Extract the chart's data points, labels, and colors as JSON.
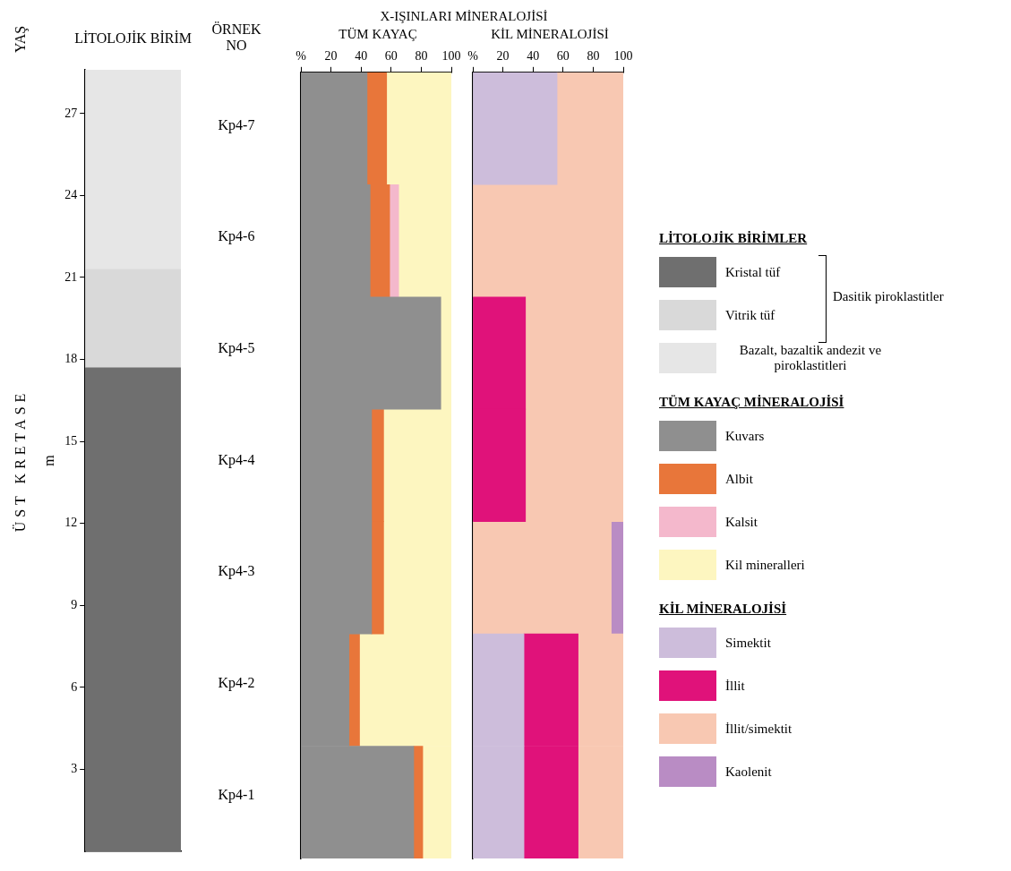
{
  "chart_data": [
    {
      "type": "bar",
      "title": "LİTOLOJİK BİRİM",
      "ylabel": "m",
      "categories": [
        null
      ],
      "stacked": true,
      "ylim": [
        0,
        28.6
      ],
      "yticks": [
        3,
        6,
        9,
        12,
        15,
        18,
        21,
        24,
        27
      ],
      "tick_labels": "y",
      "grid": false,
      "legend": "right",
      "legend_title": "LİTOLOJİK BİRİMLER",
      "series": [
        {
          "name": "Kristal tüf",
          "color": "#6f6f6f",
          "values": [
            17.7
          ]
        },
        {
          "name": "Vitrik tüf",
          "color": "#d9d9d9",
          "values": [
            3.6
          ]
        },
        {
          "name": "Bazalt, bazaltik andezit ve piroklastitleri",
          "color": "#e6e6e6",
          "values": [
            7.3
          ]
        }
      ],
      "annotations": [
        "YAŞ",
        "ÜST KRETASE",
        "ÖRNEK NO",
        "Dasitik piroklastitler",
        "Kp4-7",
        "Kp4-6",
        "Kp4-5",
        "Kp4-4",
        "Kp4-3",
        "Kp4-2",
        "Kp4-1"
      ]
    },
    {
      "type": "bar",
      "title": "X-IŞINLARI MİNERALOJİSİ",
      "subtitle": "TÜM KAYAÇ",
      "orientation": "horizontal",
      "stacked": true,
      "categories": [
        null,
        null,
        null,
        null,
        null,
        null,
        null
      ],
      "xlim": [
        0,
        100
      ],
      "xticks": [
        {
          "value": 0,
          "label": "%"
        },
        20,
        40,
        60,
        80,
        100
      ],
      "tick_labels": "x",
      "grid": false,
      "legend": "right",
      "legend_title": "TÜM KAYAÇ MİNERALOJİSİ",
      "series": [
        {
          "name": "Kuvars",
          "color": "#8f8f8f",
          "values": [
            44,
            46,
            93,
            47,
            47,
            32,
            75
          ]
        },
        {
          "name": "Albit",
          "color": "#e8763a",
          "values": [
            13,
            13,
            null,
            8,
            8,
            7,
            6
          ]
        },
        {
          "name": "Kalsit",
          "color": "#f4b8cc",
          "values": [
            null,
            6,
            null,
            null,
            null,
            null,
            null
          ]
        },
        {
          "name": "Kil mineralleri",
          "color": "#fdf6c0",
          "values": [
            43,
            35,
            7,
            45,
            45,
            61,
            19
          ]
        }
      ]
    },
    {
      "type": "bar",
      "subtitle": "KİL MİNERALOJİSİ",
      "orientation": "horizontal",
      "stacked": true,
      "categories": [
        null,
        null,
        null,
        null,
        null,
        null,
        null
      ],
      "xlim": [
        0,
        100
      ],
      "xticks": [
        {
          "value": 0,
          "label": "%"
        },
        20,
        40,
        60,
        80,
        100
      ],
      "tick_labels": "x",
      "grid": false,
      "legend": "right",
      "legend_title": "KİL MİNERALOJİSİ",
      "series": [
        {
          "name": "Simektit",
          "color": "#cdbddb",
          "values": [
            56,
            null,
            null,
            null,
            null,
            34,
            34
          ]
        },
        {
          "name": "İllit",
          "color": "#e0127a",
          "values": [
            null,
            null,
            35,
            35,
            null,
            36,
            36
          ]
        },
        {
          "name": "İllit/simektit",
          "color": "#f8c8b2",
          "values": [
            44,
            100,
            65,
            65,
            92,
            30,
            30
          ]
        },
        {
          "name": "Kaolenit",
          "color": "#b98cc4",
          "values": [
            null,
            null,
            null,
            null,
            8,
            null,
            null
          ]
        }
      ]
    }
  ]
}
